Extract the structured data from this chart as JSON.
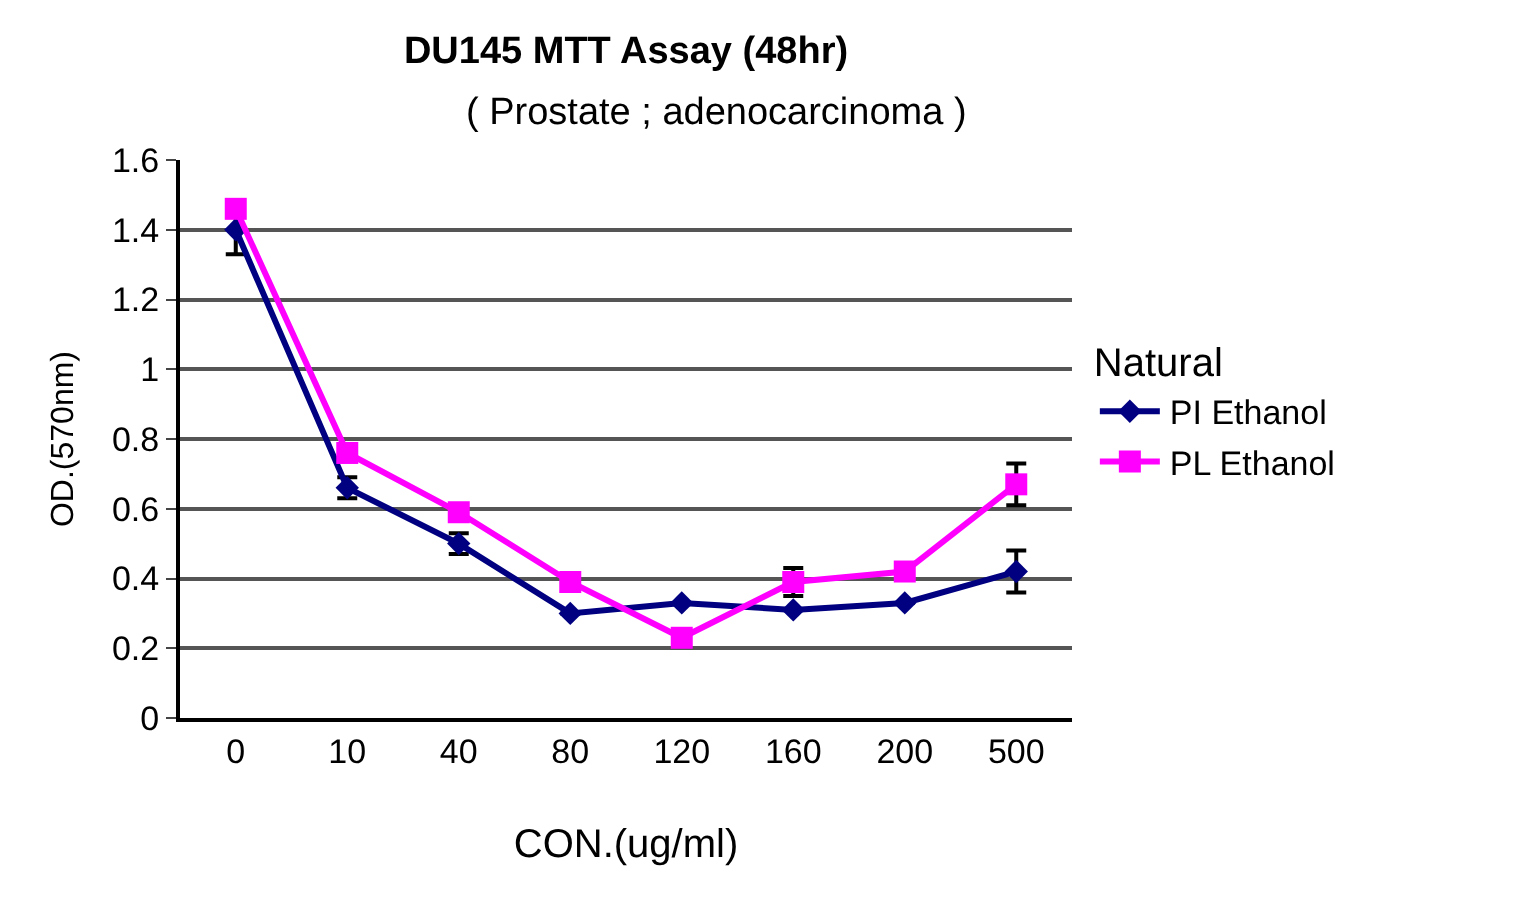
{
  "chart_data": {
    "type": "line",
    "title": "DU145 MTT Assay (48hr)",
    "subtitle": "( Prostate ; adenocarcinoma )",
    "xlabel": "CON.(ug/ml)",
    "ylabel": "OD.(570nm)",
    "legend_title": "Natural",
    "categories": [
      "0",
      "10",
      "40",
      "80",
      "120",
      "160",
      "200",
      "500"
    ],
    "series": [
      {
        "name": "PI Ethanol",
        "color": "#000080",
        "marker": "diamond",
        "values": [
          1.4,
          0.66,
          0.5,
          0.3,
          0.33,
          0.31,
          0.33,
          0.42
        ],
        "errors": [
          0.07,
          0.03,
          0.03,
          null,
          null,
          null,
          null,
          0.06
        ]
      },
      {
        "name": "PL Ethanol",
        "color": "#ff00ff",
        "marker": "square",
        "values": [
          1.46,
          0.76,
          0.59,
          0.39,
          0.23,
          0.39,
          0.42,
          0.67
        ],
        "errors": [
          null,
          null,
          null,
          null,
          null,
          0.04,
          null,
          0.06
        ]
      }
    ],
    "ylim": [
      0,
      1.6
    ],
    "yticks": [
      0,
      0.2,
      0.4,
      0.6,
      0.8,
      1,
      1.2,
      1.4,
      1.6
    ],
    "grid": "y",
    "legend": "right",
    "line_style": "solid"
  }
}
